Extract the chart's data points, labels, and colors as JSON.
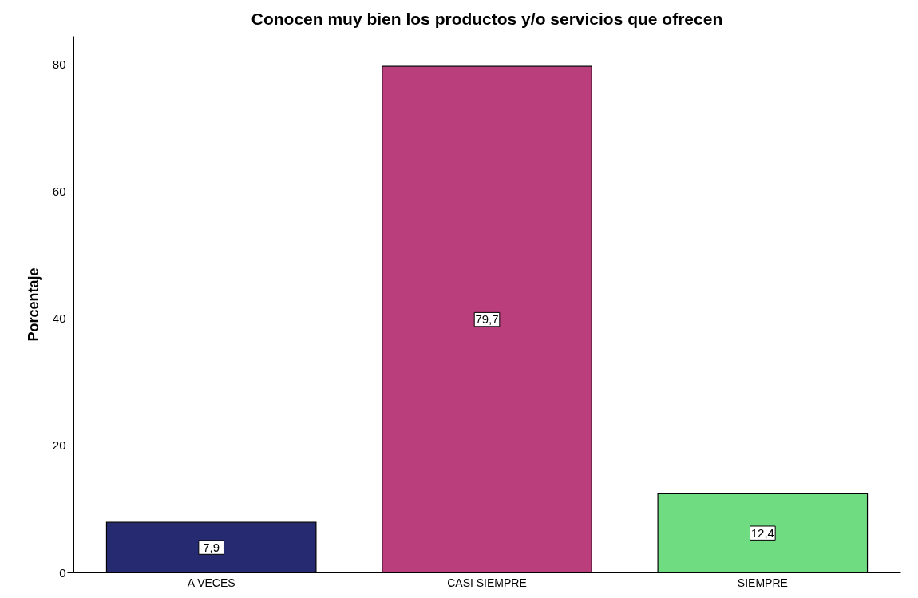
{
  "chart_data": {
    "type": "bar",
    "title": "Conocen muy bien los productos y/o servicios que ofrecen",
    "ylabel": "Porcentaje",
    "categories": [
      "A VECES",
      "CASI SIEMPRE",
      "SIEMPRE"
    ],
    "values": [
      7.9,
      79.7,
      12.4
    ],
    "colors": [
      "#262a70",
      "#bb3e7c",
      "#70dc82"
    ],
    "value_labels": [
      "7,9",
      "79,7",
      "12,4"
    ],
    "ylim": [
      0,
      84.5
    ],
    "yticks": [
      0,
      20,
      40,
      60,
      80
    ],
    "grid": false
  }
}
